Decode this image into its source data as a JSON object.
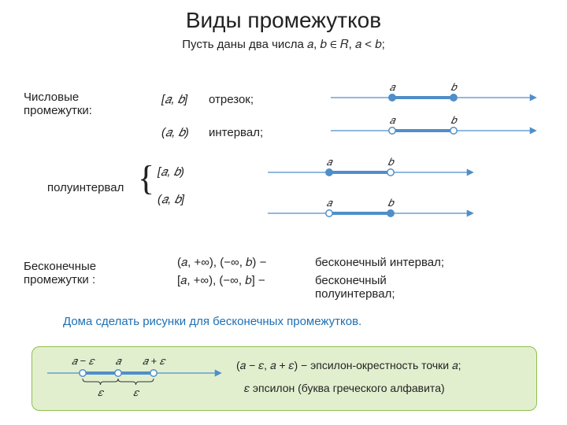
{
  "title": "Виды промежутков",
  "subtitle": "Пусть даны два числа  𝑎, 𝑏 ∈ 𝑅, 𝑎 < 𝑏;",
  "section1_label": "Числовые промежутки:",
  "segment": {
    "notation": "[𝑎, 𝑏]",
    "word": "отрезок;"
  },
  "interval": {
    "notation": "(𝑎, 𝑏)",
    "word": "интервал;"
  },
  "half_label": "полуинтервал",
  "half1_notation": "[𝑎, 𝑏)",
  "half2_notation": "(𝑎, 𝑏]",
  "section2_label": "Бесконечные промежутки :",
  "inf_interval": {
    "notation": "(𝑎, +∞), (−∞, 𝑏)  −",
    "word": "бесконечный интервал;"
  },
  "inf_half": {
    "notation": "[𝑎, +∞), (−∞, 𝑏]  −",
    "word": "бесконечный полуинтервал;"
  },
  "homework": "Дома сделать рисунки для  бесконечных промежутков.",
  "eps_def": "(𝑎 − 𝜀, 𝑎 + 𝜀)  − эпсилон-окрестность точки 𝑎;",
  "eps_note": "𝜀   эпсилон (буква греческого алфавита)",
  "diagram_style": {
    "axis_color": "#4f8ec9",
    "seg_color": "#4f8ec9",
    "seg_width": 4,
    "axis_width": 1.3,
    "point_r": 4.2,
    "point_fill_closed": "#4f8ec9",
    "point_fill_open": "#ffffff",
    "label_color": "#222222"
  },
  "lines": {
    "segment": {
      "a_closed": true,
      "b_closed": true
    },
    "interval": {
      "a_closed": false,
      "b_closed": false
    },
    "half1": {
      "a_closed": true,
      "b_closed": false
    },
    "half2": {
      "a_closed": false,
      "b_closed": true
    }
  },
  "eps_labels": {
    "left": "𝑎 − 𝜀",
    "mid": "𝑎",
    "right": "𝑎 + 𝜀",
    "eps": "𝜀"
  },
  "pt_labels": {
    "a": "𝑎",
    "b": "𝑏"
  }
}
